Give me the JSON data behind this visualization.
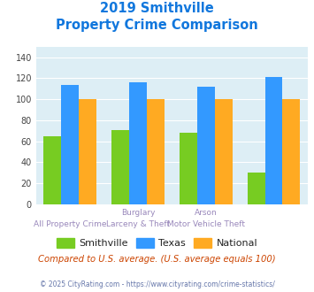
{
  "title_line1": "2019 Smithville",
  "title_line2": "Property Crime Comparison",
  "cat_labels_top": [
    "",
    "Burglary",
    "Arson",
    ""
  ],
  "cat_labels_bot": [
    "All Property Crime",
    "Larceny & Theft",
    "Motor Vehicle Theft",
    ""
  ],
  "smithville": [
    65,
    71,
    68,
    30
  ],
  "texas": [
    114,
    116,
    112,
    121
  ],
  "national": [
    100,
    100,
    100,
    100
  ],
  "group_positions": [
    0,
    1,
    2,
    3
  ],
  "color_smithville": "#77cc22",
  "color_texas": "#3399ff",
  "color_national": "#ffaa22",
  "legend_labels": [
    "Smithville",
    "Texas",
    "National"
  ],
  "ylim": [
    0,
    150
  ],
  "yticks": [
    0,
    20,
    40,
    60,
    80,
    100,
    120,
    140
  ],
  "subtitle_text": "Compared to U.S. average. (U.S. average equals 100)",
  "footer_text": "© 2025 CityRating.com - https://www.cityrating.com/crime-statistics/",
  "bg_color": "#ddeef5",
  "title_color": "#1177dd",
  "subtitle_color": "#cc4400",
  "footer_color": "#6677aa",
  "label_color": "#9988bb",
  "bar_width": 0.26
}
